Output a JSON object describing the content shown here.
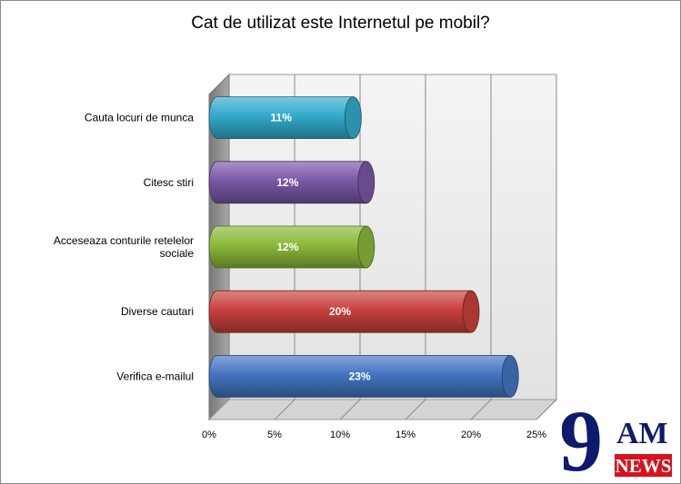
{
  "chart_data": {
    "type": "bar",
    "orientation": "horizontal",
    "title": "Cat de utilizat este Internetul pe mobil?",
    "categories": [
      "Cauta locuri de munca",
      "Citesc stiri",
      "Acceseaza conturile retelelor sociale",
      "Diverse cautari",
      "Verifica e-mailul"
    ],
    "category_lines": [
      [
        "Cauta locuri de munca"
      ],
      [
        "Citesc stiri"
      ],
      [
        "Acceseaza conturile retelelor",
        "sociale"
      ],
      [
        "Diverse cautari"
      ],
      [
        "Verifica e-mailul"
      ]
    ],
    "values": [
      11,
      12,
      12,
      20,
      23
    ],
    "value_labels": [
      "11%",
      "12%",
      "12%",
      "20%",
      "23%"
    ],
    "xlim": [
      0,
      25
    ],
    "xticks": [
      0,
      5,
      10,
      15,
      20,
      25
    ],
    "xtick_labels": [
      "0%",
      "5%",
      "10%",
      "15%",
      "20%",
      "25%"
    ],
    "grid": true,
    "colors": [
      "#33aacc",
      "#7a57a8",
      "#8cb83a",
      "#c8413d",
      "#4475c2"
    ],
    "legend": "none"
  },
  "logo": {
    "number": "9",
    "line1": "AM",
    "line2": "NEWS",
    "accent": "#d8121b",
    "ink": "#0e1a6e"
  }
}
